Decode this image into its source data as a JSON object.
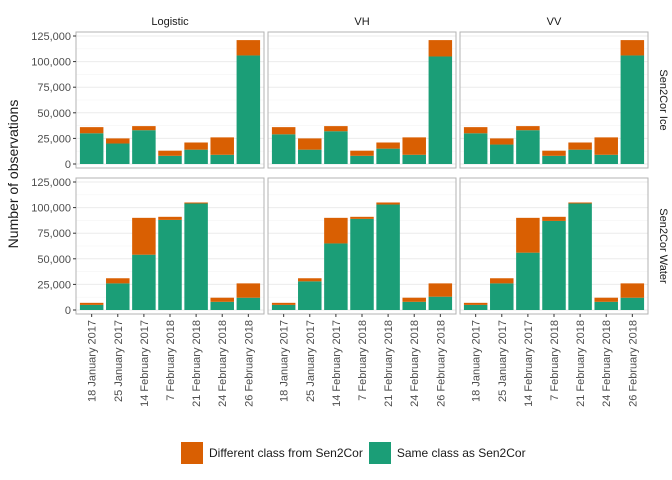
{
  "chart_data": {
    "type": "bar",
    "stacked": true,
    "ylabel": "Number of observations",
    "xlabel": "",
    "ylim": [
      0,
      125000
    ],
    "y_ticks": [
      "0",
      "25,000",
      "50,000",
      "75,000",
      "100,000",
      "125,000"
    ],
    "y_tick_values": [
      0,
      25000,
      50000,
      75000,
      100000,
      125000
    ],
    "categories": [
      "18 January 2017",
      "25 January 2017",
      "14 February 2017",
      "7 February 2018",
      "21 February 2018",
      "24 February 2018",
      "26 February 2018"
    ],
    "columns": [
      "Logistic",
      "VH",
      "VV"
    ],
    "rows": [
      "Sen2Cor Ice",
      "Sen2Cor Water"
    ],
    "legend": {
      "position": "bottom",
      "entries": [
        {
          "name": "Different class from Sen2Cor",
          "color": "#d95f02"
        },
        {
          "name": "Same class as Sen2Cor",
          "color": "#1b9e77"
        }
      ]
    },
    "panels": [
      {
        "row": "Sen2Cor Ice",
        "column": "Logistic",
        "same": [
          30000,
          20000,
          33000,
          8000,
          14000,
          9000,
          106000
        ],
        "different": [
          6000,
          5000,
          4000,
          5000,
          7000,
          17000,
          15000
        ]
      },
      {
        "row": "Sen2Cor Ice",
        "column": "VH",
        "same": [
          29000,
          14000,
          32000,
          8000,
          15000,
          9000,
          105000
        ],
        "different": [
          7000,
          11000,
          5000,
          5000,
          6000,
          17000,
          16000
        ]
      },
      {
        "row": "Sen2Cor Ice",
        "column": "VV",
        "same": [
          30000,
          19000,
          33000,
          8000,
          14000,
          9000,
          106000
        ],
        "different": [
          6000,
          6000,
          4000,
          5000,
          7000,
          17000,
          15000
        ]
      },
      {
        "row": "Sen2Cor Water",
        "column": "Logistic",
        "same": [
          5000,
          26000,
          54000,
          88000,
          104000,
          8000,
          12000
        ],
        "different": [
          2000,
          5000,
          36000,
          3000,
          1000,
          4000,
          14000
        ]
      },
      {
        "row": "Sen2Cor Water",
        "column": "VH",
        "same": [
          5000,
          28000,
          65000,
          89000,
          103000,
          8000,
          13000
        ],
        "different": [
          2000,
          3000,
          25000,
          2000,
          2000,
          4000,
          13000
        ]
      },
      {
        "row": "Sen2Cor Water",
        "column": "VV",
        "same": [
          5000,
          26000,
          56000,
          87000,
          104000,
          8000,
          12000
        ],
        "different": [
          2000,
          5000,
          34000,
          4000,
          1000,
          4000,
          14000
        ]
      }
    ]
  }
}
